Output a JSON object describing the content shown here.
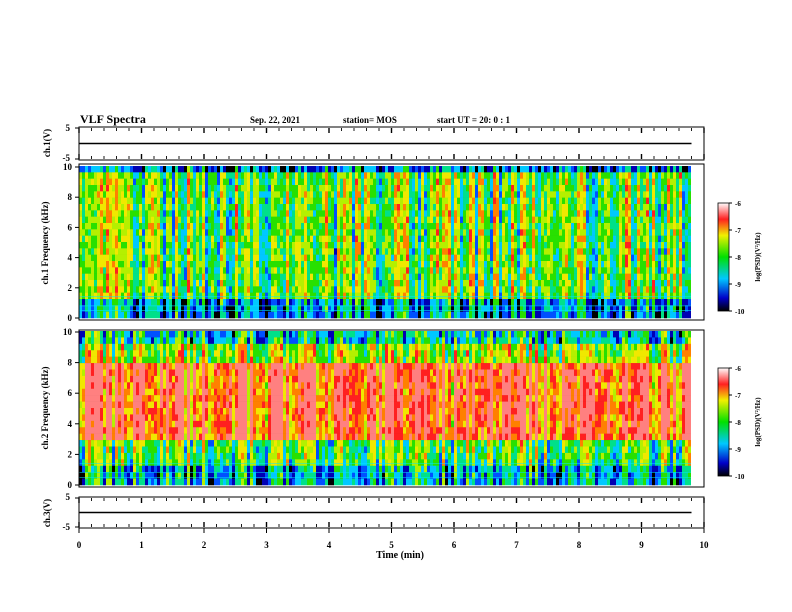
{
  "header": {
    "title": "VLF Spectra",
    "date": "Sep. 22, 2021",
    "station": "station= MOS",
    "start": "start UT =  20: 0 : 1"
  },
  "chart_data": [
    {
      "type": "line",
      "panel": "ch.1 waveform",
      "ylabel": "ch.1(V)",
      "ylim": [
        -5,
        5
      ],
      "yticks": [
        5,
        -5
      ],
      "x": [
        0,
        9.8
      ],
      "y": [
        0,
        0
      ]
    },
    {
      "type": "heatmap",
      "panel": "ch.1 spectrogram",
      "ylabel": "ch.1 Frequency (kHz)",
      "ylim": [
        0,
        10
      ],
      "yticks": [
        0,
        2,
        4,
        6,
        8,
        10
      ],
      "xlim": [
        0,
        9.8
      ],
      "colorbar": {
        "label": "log(PSD)(V²/Hz)",
        "range": [
          -10,
          -6
        ],
        "ticks": [
          "-6",
          "-7",
          "-8",
          "-9",
          "-10"
        ]
      }
    },
    {
      "type": "heatmap",
      "panel": "ch.2 spectrogram",
      "ylabel": "ch.2 Frequency (kHz)",
      "ylim": [
        0,
        10
      ],
      "yticks": [
        0,
        2,
        4,
        6,
        8,
        10
      ],
      "xlim": [
        0,
        9.8
      ],
      "colorbar": {
        "label": "log(PSD)(V²/Hz)",
        "range": [
          -10,
          -6
        ],
        "ticks": [
          "-6",
          "-7",
          "-8",
          "-9",
          "-10"
        ]
      }
    },
    {
      "type": "line",
      "panel": "ch.3 waveform",
      "ylabel": "ch.3(V)",
      "ylim": [
        -5,
        5
      ],
      "yticks": [
        5,
        -5
      ],
      "x": [
        0,
        9.8
      ],
      "y": [
        0,
        0
      ]
    }
  ],
  "xaxis": {
    "label": "Time (min)",
    "range": [
      0,
      10
    ],
    "ticks": [
      "0",
      "1",
      "2",
      "3",
      "4",
      "5",
      "6",
      "7",
      "8",
      "9",
      "10"
    ]
  }
}
